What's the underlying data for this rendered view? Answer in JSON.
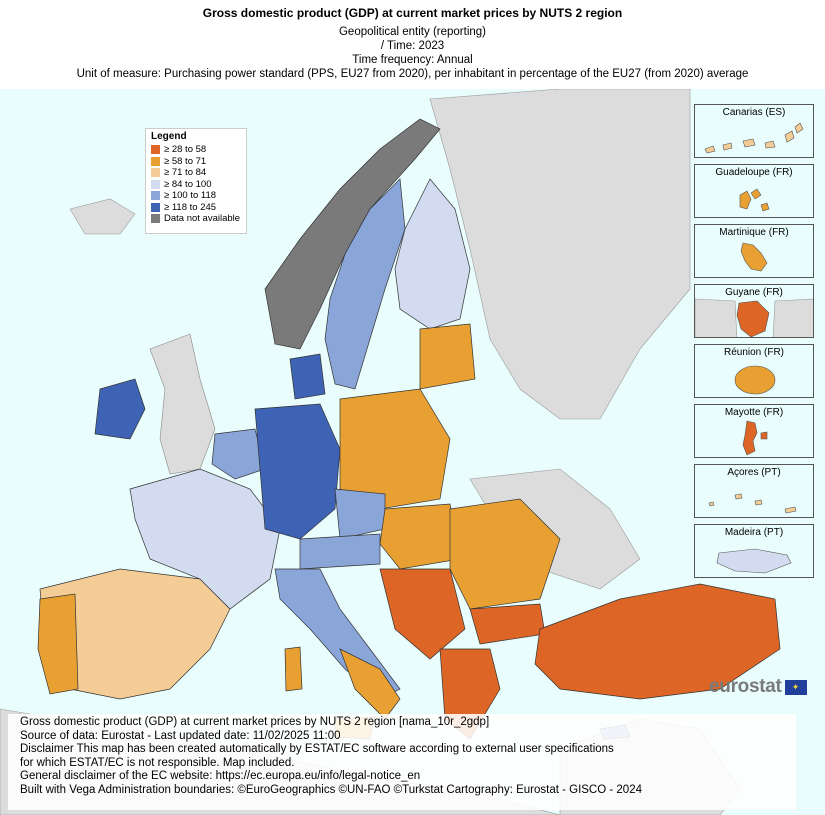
{
  "header": {
    "title": "Gross domestic product (GDP) at current market prices by NUTS 2 region",
    "line1": "Geopolitical entity (reporting)",
    "line2": "/ Time:  2023",
    "line3": "Time frequency:  Annual",
    "line4": "Unit of measure:  Purchasing power standard (PPS, EU27 from 2020), per inhabitant in percentage of the EU27 (from 2020) average"
  },
  "legend": {
    "title": "Legend",
    "items": [
      {
        "label": "≥ 28 to 58",
        "color": "#dd6526"
      },
      {
        "label": "≥ 58 to 71",
        "color": "#e8a032"
      },
      {
        "label": "≥ 71 to 84",
        "color": "#f4cd96"
      },
      {
        "label": "≥ 84 to 100",
        "color": "#d2dbef"
      },
      {
        "label": "≥ 100 to 118",
        "color": "#8aa5d8"
      },
      {
        "label": "≥ 118 to 245",
        "color": "#3e63b5"
      },
      {
        "label": "Data not available",
        "color": "#7a7a7a"
      }
    ]
  },
  "insets": [
    {
      "label": "Canarias (ES)"
    },
    {
      "label": "Guadeloupe (FR)"
    },
    {
      "label": "Martinique (FR)"
    },
    {
      "label": "Guyane (FR)"
    },
    {
      "label": "Réunion (FR)"
    },
    {
      "label": "Mayotte (FR)"
    },
    {
      "label": "Açores (PT)"
    },
    {
      "label": "Madeira (PT)"
    }
  ],
  "logo": {
    "text": "eurostat"
  },
  "footer": {
    "line1": "Gross domestic product (GDP) at current market prices by NUTS 2 region [nama_10r_2gdp]",
    "line2": "Source of data: Eurostat - Last updated date: 11/02/2025 11:00",
    "line3": "Disclaimer This map has been created automatically by ESTAT/EC software according to external user specifications",
    "line4": "for which ESTAT/EC is not responsible. Map included.",
    "line5": "General disclaimer of the EC website: https://ec.europa.eu/info/legal-notice_en",
    "line6": "Built with Vega Administration boundaries: ©EuroGeographics ©UN-FAO ©Turkstat Cartography: Eurostat - GISCO - 2024"
  }
}
